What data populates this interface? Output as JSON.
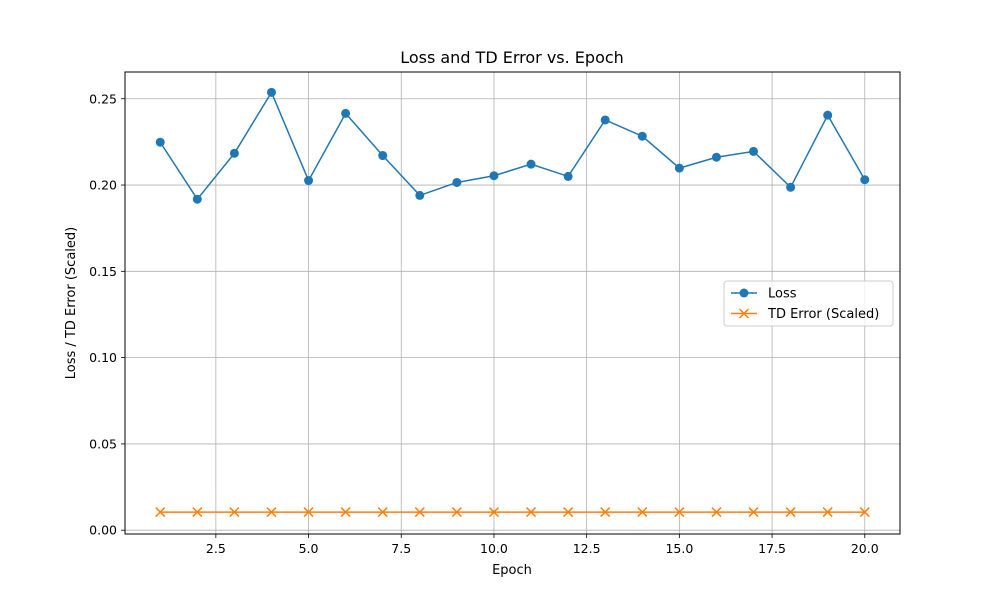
{
  "chart_data": {
    "type": "line",
    "title": "Loss and TD Error vs. Epoch",
    "xlabel": "Epoch",
    "ylabel": "Loss / TD Error (Scaled)",
    "xlim": [
      0.05,
      20.95
    ],
    "ylim": [
      -0.0022,
      0.2655
    ],
    "x_ticks": [
      2.5,
      5.0,
      7.5,
      10.0,
      12.5,
      15.0,
      17.5,
      20.0
    ],
    "x_tick_labels": [
      "2.5",
      "5.0",
      "7.5",
      "10.0",
      "12.5",
      "15.0",
      "17.5",
      "20.0"
    ],
    "y_ticks": [
      0.0,
      0.05,
      0.1,
      0.15,
      0.2,
      0.25
    ],
    "y_tick_labels": [
      "0.00",
      "0.05",
      "0.10",
      "0.15",
      "0.20",
      "0.25"
    ],
    "grid": true,
    "legend": "center-right",
    "x": [
      1,
      2,
      3,
      4,
      5,
      6,
      7,
      8,
      9,
      10,
      11,
      12,
      13,
      14,
      15,
      16,
      17,
      18,
      19,
      20
    ],
    "series": [
      {
        "name": "Loss",
        "marker": "circle",
        "color": "#1f77b4",
        "values": [
          0.2248,
          0.1918,
          0.2184,
          0.2537,
          0.2026,
          0.2415,
          0.2171,
          0.194,
          0.2015,
          0.2054,
          0.2121,
          0.205,
          0.2377,
          0.2283,
          0.2098,
          0.2161,
          0.2195,
          0.1987,
          0.2405,
          0.2031
        ]
      },
      {
        "name": "TD Error (Scaled)",
        "marker": "x",
        "color": "#ff7f0e",
        "values": [
          0.0105,
          0.0105,
          0.0105,
          0.0105,
          0.0105,
          0.0105,
          0.0105,
          0.0105,
          0.0105,
          0.0105,
          0.0105,
          0.0105,
          0.0105,
          0.0105,
          0.0105,
          0.0105,
          0.0105,
          0.0105,
          0.0105,
          0.0105
        ]
      }
    ]
  }
}
